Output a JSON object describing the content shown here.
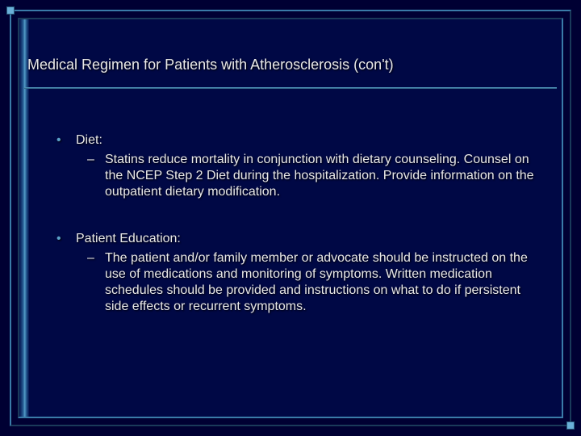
{
  "slide": {
    "background_color": "#000033",
    "inner_background_color": "#000845",
    "border_light": "#3a7ba8",
    "border_dark": "#1a3a5a",
    "accent_glow": "#6ab0d8",
    "text_color": "#e8e8e8",
    "bullet_color_l1": "#5aa0c8",
    "title_fontsize": 18,
    "body_fontsize": 16
  },
  "title": "Medical Regimen for Patients with Atherosclerosis (con't)",
  "sections": [
    {
      "heading": "Diet:",
      "sub": "Statins reduce mortality in conjunction with dietary counseling. Counsel on the NCEP Step 2 Diet during the hospitalization.  Provide information on the outpatient dietary modification."
    },
    {
      "heading": "Patient Education:",
      "sub": "The patient and/or family member or advocate should be instructed on the use of medications and monitoring of symptoms.  Written medication schedules should be provided and instructions on what to do if persistent side effects or recurrent symptoms."
    }
  ]
}
